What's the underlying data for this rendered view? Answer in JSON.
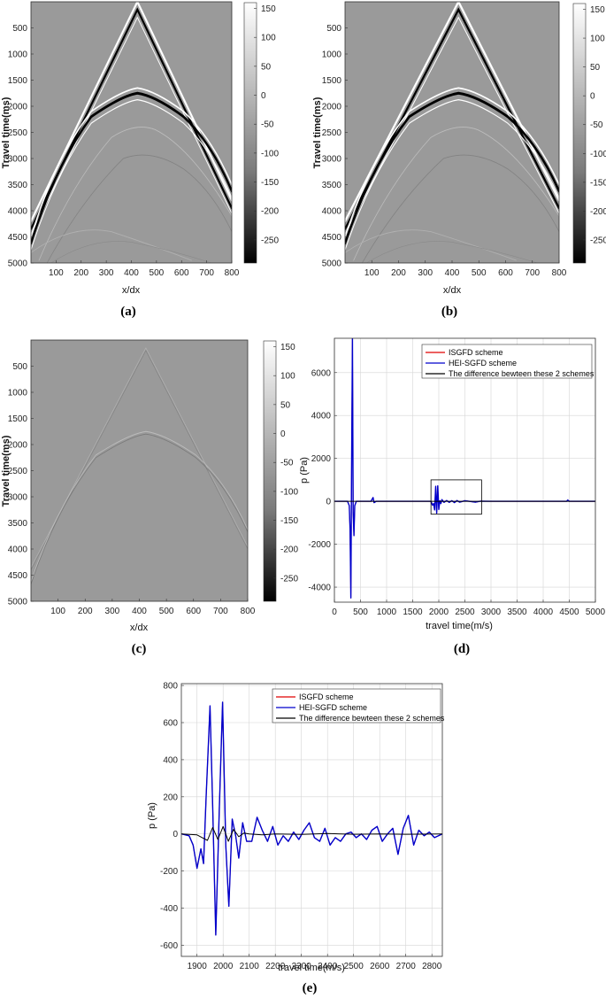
{
  "colors": {
    "isgfd": "#e00000",
    "heisgfd": "#0000cc",
    "difference": "#000000",
    "grid": "#d6d6d6"
  },
  "chart_data": [
    {
      "type": "heatmap",
      "caption": "(a)",
      "xlabel": "x/dx",
      "ylabel": "Travel time(ms)",
      "x_ticks": [
        "100",
        "200",
        "300",
        "400",
        "500",
        "600",
        "700",
        "800"
      ],
      "y_ticks": [
        "500",
        "1000",
        "1500",
        "2000",
        "2500",
        "3000",
        "3500",
        "4000",
        "4500",
        "5000"
      ],
      "xlim": [
        0,
        800
      ],
      "ylim": [
        0,
        5000
      ],
      "colorbar_ticks": [
        "150",
        "100",
        "50",
        "0",
        "-50",
        "-100",
        "-150",
        "-200",
        "-250"
      ],
      "colorbar_range": [
        -290,
        160
      ],
      "colormap": "gray"
    },
    {
      "type": "heatmap",
      "caption": "(b)",
      "xlabel": "x/dx",
      "ylabel": "Travel time(ms)",
      "x_ticks": [
        "100",
        "200",
        "300",
        "400",
        "500",
        "600",
        "700",
        "800"
      ],
      "y_ticks": [
        "500",
        "1000",
        "1500",
        "2000",
        "2500",
        "3000",
        "3500",
        "4000",
        "4500",
        "5000"
      ],
      "xlim": [
        0,
        800
      ],
      "ylim": [
        0,
        5000
      ],
      "colorbar_ticks": [
        "150",
        "100",
        "50",
        "0",
        "-50",
        "-100",
        "-150",
        "-200",
        "-250"
      ],
      "colorbar_range": [
        -290,
        160
      ],
      "colormap": "gray"
    },
    {
      "type": "heatmap",
      "caption": "(c)",
      "xlabel": "x/dx",
      "ylabel": "Travel time(ms)",
      "x_ticks": [
        "100",
        "200",
        "300",
        "400",
        "500",
        "600",
        "700",
        "800"
      ],
      "y_ticks": [
        "500",
        "1000",
        "1500",
        "2000",
        "2500",
        "3000",
        "3500",
        "4000",
        "4500",
        "5000"
      ],
      "xlim": [
        0,
        800
      ],
      "ylim": [
        0,
        5000
      ],
      "colorbar_ticks": [
        "150",
        "100",
        "50",
        "0",
        "-50",
        "-100",
        "-150",
        "-200",
        "-250"
      ],
      "colorbar_range": [
        -290,
        160
      ],
      "colormap": "gray"
    },
    {
      "type": "line",
      "caption": "(d)",
      "xlabel": "travel time(m/s)",
      "ylabel": "p (Pa)",
      "xlim": [
        0,
        5000
      ],
      "ylim": [
        -4700,
        7600
      ],
      "x_ticks": [
        0,
        500,
        1000,
        1500,
        2000,
        2500,
        3000,
        3500,
        4000,
        4500,
        5000
      ],
      "y_ticks": [
        -4000,
        -2000,
        0,
        2000,
        4000,
        6000
      ],
      "legend": [
        "ISGFD scheme",
        "HEI-SGFD scheme",
        "The difference bewteen these 2 schemes"
      ],
      "legend_position": "top-right",
      "grid": true,
      "zoom_box": {
        "x": [
          1850,
          2820
        ],
        "y": [
          -600,
          1000
        ]
      },
      "series": [
        {
          "name": "ISGFD scheme",
          "color": "isgfd",
          "x": [
            0,
            250,
            285,
            300,
            315,
            330,
            345,
            360,
            375,
            390,
            420,
            700,
            740,
            760,
            800,
            1850,
            1880,
            1900,
            1920,
            1940,
            1960,
            1980,
            2000,
            2020,
            2040,
            2060,
            2100,
            2150,
            2200,
            2250,
            2300,
            2350,
            2400,
            2500,
            2700,
            2800,
            3000,
            4450,
            4470,
            4500,
            5000
          ],
          "y": [
            0,
            0,
            -200,
            -1300,
            -4500,
            2000,
            7600,
            -500,
            -1600,
            -200,
            0,
            0,
            180,
            -60,
            0,
            0,
            -180,
            -100,
            -400,
            700,
            -550,
            720,
            -380,
            30,
            -100,
            80,
            -50,
            40,
            -50,
            30,
            -60,
            40,
            -40,
            30,
            -40,
            10,
            0,
            0,
            60,
            0,
            0
          ]
        },
        {
          "name": "HEI-SGFD scheme",
          "color": "heisgfd",
          "x": [
            0,
            250,
            285,
            300,
            315,
            330,
            345,
            360,
            375,
            390,
            420,
            700,
            740,
            760,
            800,
            1850,
            1880,
            1900,
            1920,
            1940,
            1960,
            1980,
            2000,
            2020,
            2040,
            2060,
            2100,
            2150,
            2200,
            2250,
            2300,
            2350,
            2400,
            2500,
            2700,
            2800,
            3000,
            4450,
            4470,
            4500,
            5000
          ],
          "y": [
            0,
            0,
            -200,
            -1300,
            -4500,
            2000,
            7600,
            -500,
            -1600,
            -200,
            0,
            0,
            180,
            -60,
            0,
            0,
            -180,
            -100,
            -400,
            700,
            -550,
            720,
            -380,
            30,
            -100,
            80,
            -50,
            40,
            -50,
            30,
            -60,
            40,
            -40,
            30,
            -40,
            10,
            0,
            0,
            60,
            0,
            0
          ]
        },
        {
          "name": "The difference bewteen these 2 schemes",
          "color": "difference",
          "x": [
            0,
            5000
          ],
          "y": [
            0,
            0
          ]
        }
      ]
    },
    {
      "type": "line",
      "caption": "(e)",
      "xlabel": "travel time(m/s)",
      "ylabel": "p (Pa)",
      "xlim": [
        1840,
        2840
      ],
      "ylim": [
        -660,
        810
      ],
      "x_ticks": [
        1900,
        2000,
        2100,
        2200,
        2300,
        2400,
        2500,
        2600,
        2700,
        2800
      ],
      "y_ticks": [
        -600,
        -400,
        -200,
        0,
        200,
        400,
        600,
        800
      ],
      "legend": [
        "ISGFD scheme",
        "HEI-SGFD scheme",
        "The difference bewteen these 2 schemes"
      ],
      "legend_position": "top-right",
      "grid": true,
      "series": [
        {
          "name": "ISGFD scheme",
          "color": "isgfd",
          "x": [
            1840,
            1870,
            1885,
            1900,
            1915,
            1925,
            1935,
            1950,
            1960,
            1972,
            1985,
            1998,
            2010,
            2022,
            2035,
            2048,
            2060,
            2075,
            2090,
            2110,
            2130,
            2150,
            2170,
            2190,
            2210,
            2230,
            2250,
            2270,
            2290,
            2310,
            2330,
            2350,
            2370,
            2390,
            2410,
            2430,
            2450,
            2470,
            2490,
            2510,
            2530,
            2550,
            2570,
            2590,
            2610,
            2630,
            2650,
            2670,
            2690,
            2710,
            2730,
            2750,
            2770,
            2790,
            2810,
            2840
          ],
          "y": [
            0,
            -10,
            -60,
            -185,
            -80,
            -160,
            200,
            690,
            150,
            -545,
            120,
            710,
            -60,
            -390,
            80,
            -10,
            -130,
            60,
            -40,
            -40,
            90,
            20,
            -40,
            40,
            -60,
            -10,
            -40,
            10,
            -30,
            20,
            60,
            -20,
            -40,
            30,
            -60,
            -20,
            -40,
            0,
            10,
            -20,
            0,
            -30,
            20,
            40,
            -40,
            0,
            30,
            -110,
            30,
            100,
            -60,
            20,
            -10,
            10,
            -20,
            0
          ]
        },
        {
          "name": "HEI-SGFD scheme",
          "color": "heisgfd",
          "x": [
            1840,
            1870,
            1885,
            1900,
            1915,
            1925,
            1935,
            1950,
            1960,
            1972,
            1985,
            1998,
            2010,
            2022,
            2035,
            2048,
            2060,
            2075,
            2090,
            2110,
            2130,
            2150,
            2170,
            2190,
            2210,
            2230,
            2250,
            2270,
            2290,
            2310,
            2330,
            2350,
            2370,
            2390,
            2410,
            2430,
            2450,
            2470,
            2490,
            2510,
            2530,
            2550,
            2570,
            2590,
            2610,
            2630,
            2650,
            2670,
            2690,
            2710,
            2730,
            2750,
            2770,
            2790,
            2810,
            2840
          ],
          "y": [
            0,
            -10,
            -60,
            -185,
            -80,
            -160,
            200,
            690,
            150,
            -545,
            120,
            710,
            -60,
            -390,
            80,
            -10,
            -130,
            60,
            -40,
            -40,
            90,
            20,
            -40,
            40,
            -60,
            -10,
            -40,
            10,
            -30,
            20,
            60,
            -20,
            -40,
            30,
            -60,
            -20,
            -40,
            0,
            10,
            -20,
            0,
            -30,
            20,
            40,
            -40,
            0,
            30,
            -110,
            30,
            100,
            -60,
            20,
            -10,
            10,
            -20,
            0
          ]
        },
        {
          "name": "The difference bewteen these 2 schemes",
          "color": "difference",
          "x": [
            1840,
            1900,
            1920,
            1940,
            1960,
            1980,
            2000,
            2020,
            2040,
            2060,
            2080,
            2100,
            2150,
            2200,
            2300,
            2400,
            2500,
            2600,
            2700,
            2840
          ],
          "y": [
            0,
            -5,
            -20,
            -35,
            35,
            -30,
            40,
            -40,
            25,
            -15,
            5,
            0,
            -5,
            0,
            -3,
            2,
            -2,
            0,
            -2,
            0
          ]
        }
      ]
    }
  ]
}
